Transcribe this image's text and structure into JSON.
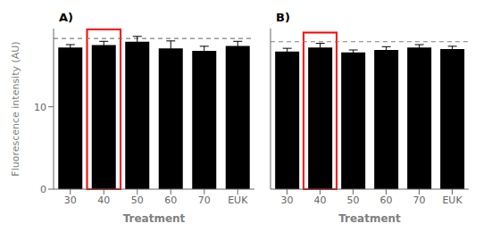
{
  "chart_data": [
    {
      "type": "bar",
      "title": "A)",
      "categories": [
        "30",
        "40",
        "50",
        "60",
        "70",
        "EUK"
      ],
      "values": [
        17.2,
        17.5,
        17.9,
        17.1,
        16.8,
        17.4
      ],
      "errors": [
        0.35,
        0.45,
        0.65,
        0.9,
        0.55,
        0.55
      ],
      "reference_line": 18.3,
      "highlight": {
        "category": "40",
        "bottom": 0,
        "top": 19.4,
        "color": "red"
      },
      "color": "#000000",
      "xlabel": "Treatment",
      "ylabel": "Fluorescence intensity (AU)",
      "ylim": [
        0,
        19.5
      ],
      "yticks": [
        0,
        10
      ],
      "grid": false
    },
    {
      "type": "bar",
      "title": "B)",
      "categories": [
        "30",
        "40",
        "50",
        "60",
        "70",
        "EUK"
      ],
      "values": [
        16.7,
        17.2,
        16.6,
        16.9,
        17.2,
        17.0
      ],
      "errors": [
        0.4,
        0.5,
        0.3,
        0.4,
        0.35,
        0.35
      ],
      "reference_line": 17.9,
      "highlight": {
        "category": "40",
        "bottom": 0,
        "top": 19.0,
        "color": "red"
      },
      "color": "#000000",
      "xlabel": "Treatment",
      "ylim": [
        0,
        19.5
      ],
      "yticks": [
        0,
        10
      ],
      "grid": false,
      "tick_labels": "x"
    }
  ]
}
